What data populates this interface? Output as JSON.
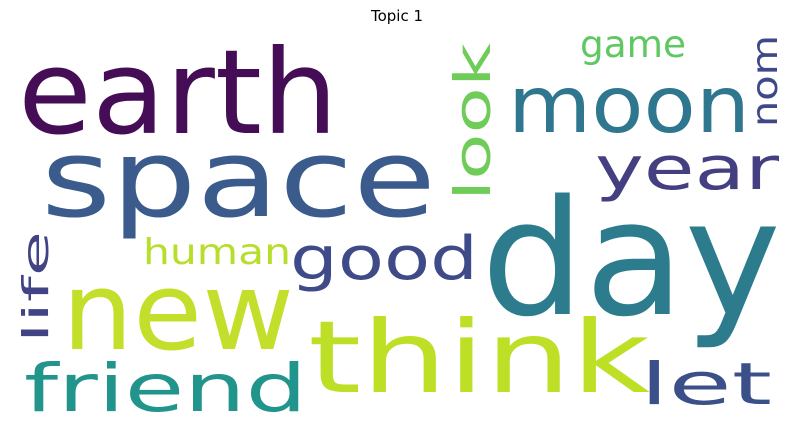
{
  "title": "Topic 1",
  "words": [
    {
      "text": "earth",
      "color": "#440d56"
    },
    {
      "text": "space",
      "color": "#3a5b8c"
    },
    {
      "text": "day",
      "color": "#2c7c8e"
    },
    {
      "text": "new",
      "color": "#c4df2b"
    },
    {
      "text": "think",
      "color": "#bddf26"
    },
    {
      "text": "moon",
      "color": "#2f778e"
    },
    {
      "text": "friend",
      "color": "#21948b"
    },
    {
      "text": "good",
      "color": "#3f4a89"
    },
    {
      "text": "year",
      "color": "#433f80"
    },
    {
      "text": "let",
      "color": "#3b5089"
    },
    {
      "text": "look",
      "color": "#70cc58"
    },
    {
      "text": "human",
      "color": "#b6de2b"
    },
    {
      "text": "life",
      "color": "#414385"
    },
    {
      "text": "game",
      "color": "#5fc863"
    },
    {
      "text": "nom",
      "color": "#3f4889"
    }
  ]
}
